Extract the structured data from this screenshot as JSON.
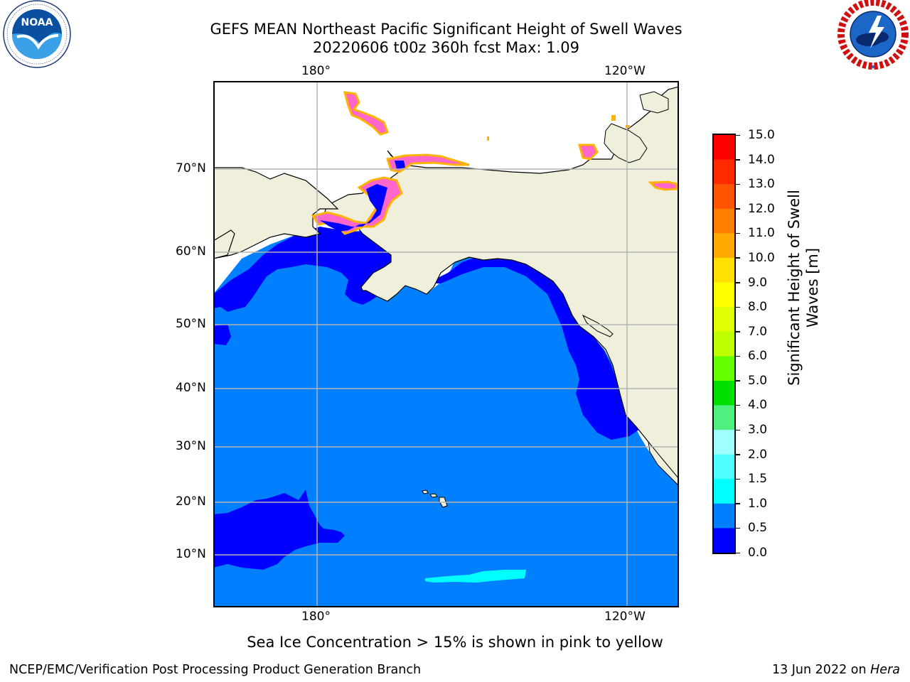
{
  "title_line1": "GEFS MEAN Northeast Pacific Significant Height of Swell Waves",
  "title_line2": "20220606 t00z 360h fcst   Max: 1.09",
  "lon_labels": [
    "180°",
    "120°W"
  ],
  "lat_labels": [
    "70°N",
    "60°N",
    "50°N",
    "40°N",
    "30°N",
    "20°N",
    "10°N"
  ],
  "colorbar": {
    "label_line1": "Significant Height of Swell",
    "label_line2": "Waves [m]",
    "ticks": [
      "15.0",
      "14.0",
      "13.0",
      "12.0",
      "11.0",
      "10.0",
      "9.0",
      "8.0",
      "7.0",
      "6.0",
      "5.0",
      "4.0",
      "3.0",
      "2.0",
      "1.5",
      "1.0",
      "0.5",
      "0.0"
    ],
    "colors": [
      "#ff0000",
      "#ff2a00",
      "#ff5500",
      "#ff8000",
      "#ffaa00",
      "#ffe000",
      "#ffff00",
      "#e0ff00",
      "#c0ff00",
      "#66ff00",
      "#00e000",
      "#50f080",
      "#a0ffff",
      "#50ffff",
      "#00ffff",
      "#0080ff",
      "#0000ff"
    ]
  },
  "ice_note": "Sea Ice Concentration > 15% is shown in pink to yellow",
  "footer_left": "NCEP/EMC/Verification Post Processing Product Generation Branch",
  "footer_right_date": "13 Jun 2022 on ",
  "footer_right_host": "Hera",
  "logos": {
    "noaa_text": "NOAA",
    "noaa_ring": "NATIONAL OCEANIC AND ATMOSPHERIC ADMINISTRATION · U.S. DEPARTMENT OF COMMERCE",
    "nws_ring": "NATIONAL WEATHER SERVICE"
  },
  "map_colors": {
    "ocean": "#0080ff",
    "low_swell": "#0000ff",
    "land": "#efefdc",
    "ice": "#ff66cc",
    "ice_edge": "#ffb300",
    "grid": "#b3b3b3",
    "cyan": "#00ffff"
  }
}
